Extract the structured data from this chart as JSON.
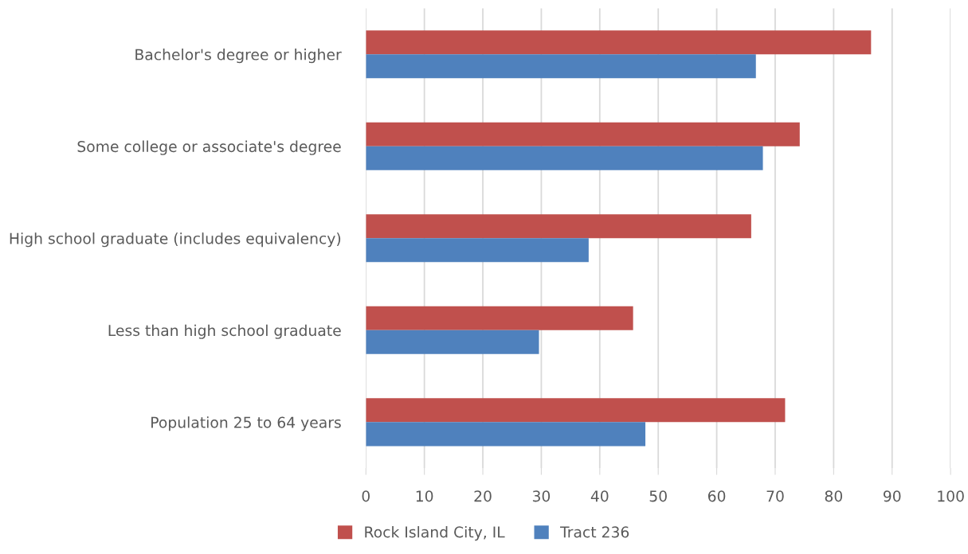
{
  "chart_data": {
    "type": "bar",
    "orientation": "horizontal",
    "categories": [
      "Bachelor's degree or higher",
      "Some college or associate's degree",
      "High school graduate (includes equivalency)",
      "Less than high school graduate",
      "Population 25 to 64 years"
    ],
    "series": [
      {
        "name": "Rock Island City, IL",
        "color": "#c0504d",
        "values": [
          86.4,
          74.2,
          65.9,
          45.7,
          71.7
        ]
      },
      {
        "name": "Tract 236",
        "color": "#4f81bd",
        "values": [
          66.7,
          67.9,
          38.1,
          29.6,
          47.8
        ]
      }
    ],
    "xlim": [
      0,
      100
    ],
    "xticks": [
      0,
      10,
      20,
      30,
      40,
      50,
      60,
      70,
      80,
      90,
      100
    ],
    "grid": "x",
    "legend": "bottom"
  }
}
